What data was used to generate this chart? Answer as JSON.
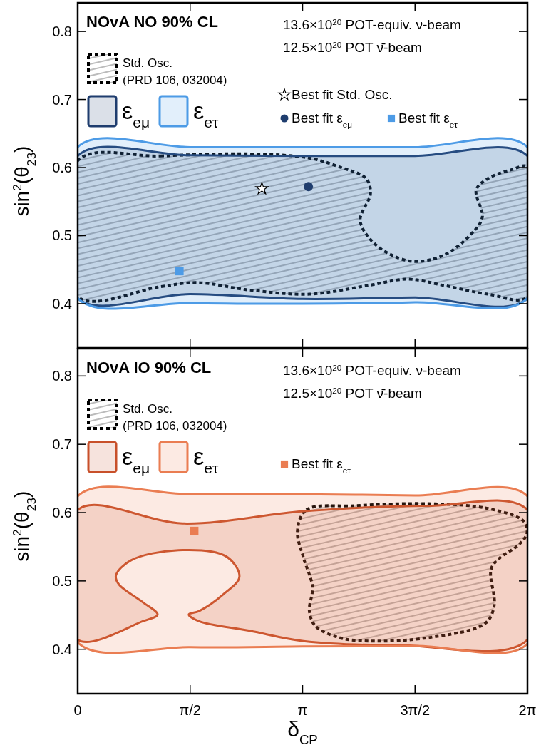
{
  "chart_data": [
    {
      "type": "area",
      "title": "NOvA NO 90% CL",
      "ylabel": "sin$^{2}$(θ$_{23}$)",
      "annotations": [
        "13.6×10$^{20}$ POT-equiv. ν-beam",
        "12.5×10$^{20}$ POT ν̄-beam"
      ],
      "xlim": [
        0,
        6.2832
      ],
      "xticks": [
        {
          "value": 0,
          "label": null
        },
        {
          "value": 1.5708,
          "label": null
        },
        {
          "value": 3.1416,
          "label": null
        },
        {
          "value": 4.7124,
          "label": null
        },
        {
          "value": 6.2832,
          "label": null
        }
      ],
      "ylim": [
        0.335,
        0.842
      ],
      "yticks": [
        0.4,
        0.5,
        0.6,
        0.7,
        0.8
      ],
      "tick_labels": "y",
      "legend": "top left",
      "series": [
        {
          "name": "Std. Osc.\n(PRD 106, 032004)",
          "color": "#000000",
          "line_style": "dashed",
          "x": [
            0,
            1.156,
            2.406,
            3.236,
            3.654,
            4.028,
            4.09,
            3.946,
            4.068,
            4.32,
            4.694,
            5.108,
            5.485,
            5.652,
            5.567,
            5.733,
            6.066,
            6.283,
            6.283,
            5.733,
            5.108,
            4.612,
            4.068,
            3.236,
            2.406,
            1.656,
            1.156,
            0
          ],
          "values": [
            0.61,
            0.617,
            0.62,
            0.614,
            0.601,
            0.584,
            0.562,
            0.523,
            0.497,
            0.475,
            0.462,
            0.471,
            0.501,
            0.527,
            0.567,
            0.584,
            0.597,
            0.601,
            0.41,
            0.414,
            0.427,
            0.436,
            0.427,
            0.414,
            0.42,
            0.431,
            0.425,
            0.41
          ]
        },
        {
          "name": "ε$_{eμ}$",
          "color": "#1f3d6e",
          "x": [
            0,
            1.571,
            3.142,
            4.712,
            6.283,
            6.283,
            4.712,
            3.142,
            1.571,
            0
          ],
          "values": [
            0.617,
            0.618,
            0.617,
            0.617,
            0.617,
            0.408,
            0.409,
            0.407,
            0.414,
            0.408
          ]
        },
        {
          "name": "ε$_{eτ}$",
          "color": "#4d9be6",
          "x": [
            0,
            1.571,
            3.142,
            4.712,
            6.283,
            6.283,
            4.712,
            3.142,
            1.571,
            0
          ],
          "values": [
            0.63,
            0.63,
            0.63,
            0.63,
            0.63,
            0.408,
            0.402,
            0.4,
            0.401,
            0.408
          ]
        },
        {
          "name": "Best fit Std. Osc.",
          "type": "scatter",
          "marker": "star",
          "color": "#ffffff",
          "x": [
            2.573
          ],
          "values": [
            0.569
          ]
        },
        {
          "name": "Best fit ε$_{eμ}$",
          "type": "scatter",
          "marker": "circle",
          "color": "#1f3d6e",
          "x": [
            3.223
          ],
          "values": [
            0.572
          ]
        },
        {
          "name": "Best fit ε$_{eτ}$",
          "type": "scatter",
          "marker": "square",
          "color": "#4d9be6",
          "x": [
            1.42
          ],
          "values": [
            0.448
          ]
        }
      ]
    },
    {
      "type": "area",
      "title": "NOvA IO 90% CL",
      "xlabel": "δ$_{CP}$",
      "ylabel": "sin$^{2}$(θ$_{23}$)",
      "annotations": [
        "13.6×10$^{20}$ POT-equiv. ν-beam",
        "12.5×10$^{20}$ POT ν̄-beam"
      ],
      "xlim": [
        0,
        6.2832
      ],
      "xticks": [
        {
          "value": 0,
          "label": "0"
        },
        {
          "value": 1.5708,
          "label": "π/2"
        },
        {
          "value": 3.1416,
          "label": "π"
        },
        {
          "value": 4.7124,
          "label": "3π/2"
        },
        {
          "value": 6.2832,
          "label": "2π"
        }
      ],
      "ylim": [
        0.335,
        0.84
      ],
      "yticks": [
        0.4,
        0.5,
        0.6,
        0.7,
        0.8
      ],
      "legend": "top left",
      "series": [
        {
          "name": "Std. Osc.\n(PRD 106, 032004)",
          "color": "#000000",
          "line_style": "dashed",
          "x": [
            3.069,
            3.195,
            3.861,
            4.901,
            5.733,
            6.233,
            6.274,
            6.151,
            5.9,
            5.774,
            5.818,
            5.693,
            4.901,
            4.068,
            3.654,
            3.321,
            3.236,
            3.28,
            3.154
          ],
          "values": [
            0.573,
            0.604,
            0.61,
            0.613,
            0.606,
            0.587,
            0.569,
            0.552,
            0.534,
            0.517,
            0.464,
            0.438,
            0.417,
            0.412,
            0.417,
            0.434,
            0.456,
            0.491,
            0.534
          ]
        },
        {
          "name": "ε$_{eμ}$",
          "color": "#c8502a",
          "x": [
            0,
            1.489,
            3.154,
            4.901,
            6.283,
            6.283,
            4.486,
            3.154,
            2.406,
            1.696,
            1.552,
            1.696,
            2.029,
            2.259,
            2.073,
            1.407,
            0.741,
            0.534,
            0.575,
            0.908,
            1.115,
            0.908,
            0
          ],
          "values": [
            0.604,
            0.584,
            0.602,
            0.61,
            0.604,
            0.414,
            0.406,
            0.412,
            0.427,
            0.441,
            0.451,
            0.456,
            0.48,
            0.506,
            0.536,
            0.545,
            0.53,
            0.508,
            0.495,
            0.469,
            0.451,
            0.441,
            0.414
          ]
        },
        {
          "name": "ε$_{eτ}$",
          "color": "#ea7d52",
          "x": [
            0,
            1.571,
            3.142,
            4.712,
            6.283,
            6.283,
            4.712,
            3.142,
            1.571,
            0
          ],
          "values": [
            0.624,
            0.627,
            0.627,
            0.625,
            0.624,
            0.408,
            0.405,
            0.404,
            0.403,
            0.41
          ]
        },
        {
          "name": "Best fit ε$_{eτ}$",
          "type": "scatter",
          "marker": "square",
          "color": "#ea7d52",
          "x": [
            1.627
          ],
          "values": [
            0.573
          ]
        }
      ]
    }
  ]
}
